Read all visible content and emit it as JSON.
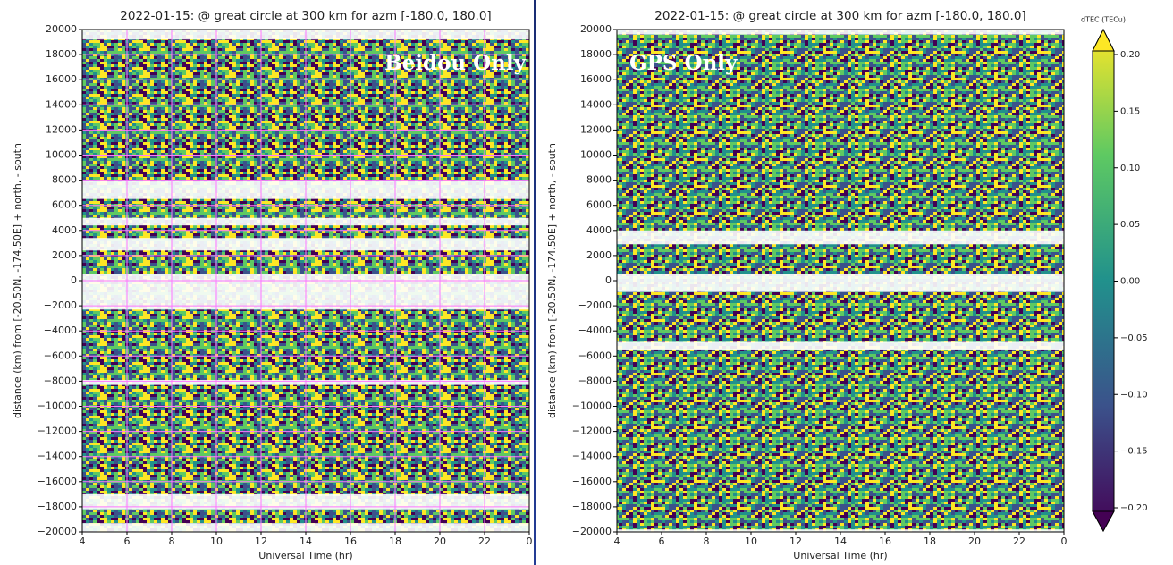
{
  "chart_data": [
    {
      "type": "keogram",
      "title": "2022-01-15:  @  great circle at 300 km for azm [-180.0, 180.0]",
      "xlabel": "Universal Time (hr)",
      "ylabel": "distance (km) from [-20.50N, -174.50E] + north, - south",
      "annotation": "Beidou Only",
      "xlim": [
        4,
        24
      ],
      "xticks": [
        4,
        6,
        8,
        10,
        12,
        14,
        16,
        18,
        20,
        22,
        {
          "value": 24,
          "label": "0"
        }
      ],
      "ylim": [
        -20000,
        20000
      ],
      "yticks": [
        {
          "value": -20000,
          "label": "−20000"
        },
        {
          "value": -18000,
          "label": "−18000"
        },
        {
          "value": -16000,
          "label": "−16000"
        },
        {
          "value": -14000,
          "label": "−14000"
        },
        {
          "value": -12000,
          "label": "−12000"
        },
        {
          "value": -10000,
          "label": "−10000"
        },
        {
          "value": -8000,
          "label": "−8000"
        },
        {
          "value": -6000,
          "label": "−6000"
        },
        {
          "value": -4000,
          "label": "−4000"
        },
        {
          "value": -2000,
          "label": "−2000"
        },
        0,
        2000,
        4000,
        6000,
        8000,
        10000,
        12000,
        14000,
        16000,
        18000,
        20000
      ],
      "grid": true,
      "grid_color": "#ff77ff"
    },
    {
      "type": "keogram",
      "title": "2022-01-15:  @  great circle at 300 km for azm [-180.0, 180.0]",
      "xlabel": "Universal Time (hr)",
      "ylabel": "distance (km) from [-20.50N, -174.50E] + north, - south",
      "annotation": "GPS Only",
      "xlim": [
        4,
        24
      ],
      "xticks": [
        4,
        6,
        8,
        10,
        12,
        14,
        16,
        18,
        20,
        22,
        {
          "value": 24,
          "label": "0"
        }
      ],
      "ylim": [
        -20000,
        20000
      ],
      "yticks": [
        {
          "value": -20000,
          "label": "−20000"
        },
        {
          "value": -18000,
          "label": "−18000"
        },
        {
          "value": -16000,
          "label": "−16000"
        },
        {
          "value": -14000,
          "label": "−14000"
        },
        {
          "value": -12000,
          "label": "−12000"
        },
        {
          "value": -10000,
          "label": "−10000"
        },
        {
          "value": -8000,
          "label": "−8000"
        },
        {
          "value": -6000,
          "label": "−6000"
        },
        {
          "value": -4000,
          "label": "−4000"
        },
        {
          "value": -2000,
          "label": "−2000"
        },
        0,
        2000,
        4000,
        6000,
        8000,
        10000,
        12000,
        14000,
        16000,
        18000,
        20000
      ],
      "grid": false,
      "colorbar": {
        "label": "dTEC (TECu)",
        "lim": [
          -0.2,
          0.2
        ],
        "ticks": [
          {
            "value": -0.2,
            "label": "−0.20"
          },
          {
            "value": -0.15,
            "label": "−0.15"
          },
          {
            "value": -0.1,
            "label": "−0.10"
          },
          {
            "value": -0.05,
            "label": "−0.05"
          },
          {
            "value": 0,
            "label": "0.00"
          },
          {
            "value": 0.05,
            "label": "0.05"
          },
          {
            "value": 0.1,
            "label": "0.10"
          },
          {
            "value": 0.15,
            "label": "0.15"
          },
          {
            "value": 0.2,
            "label": "0.20"
          }
        ],
        "colormap": [
          "#440154",
          "#3b528b",
          "#21918c",
          "#5ec962",
          "#fde725"
        ]
      }
    }
  ]
}
